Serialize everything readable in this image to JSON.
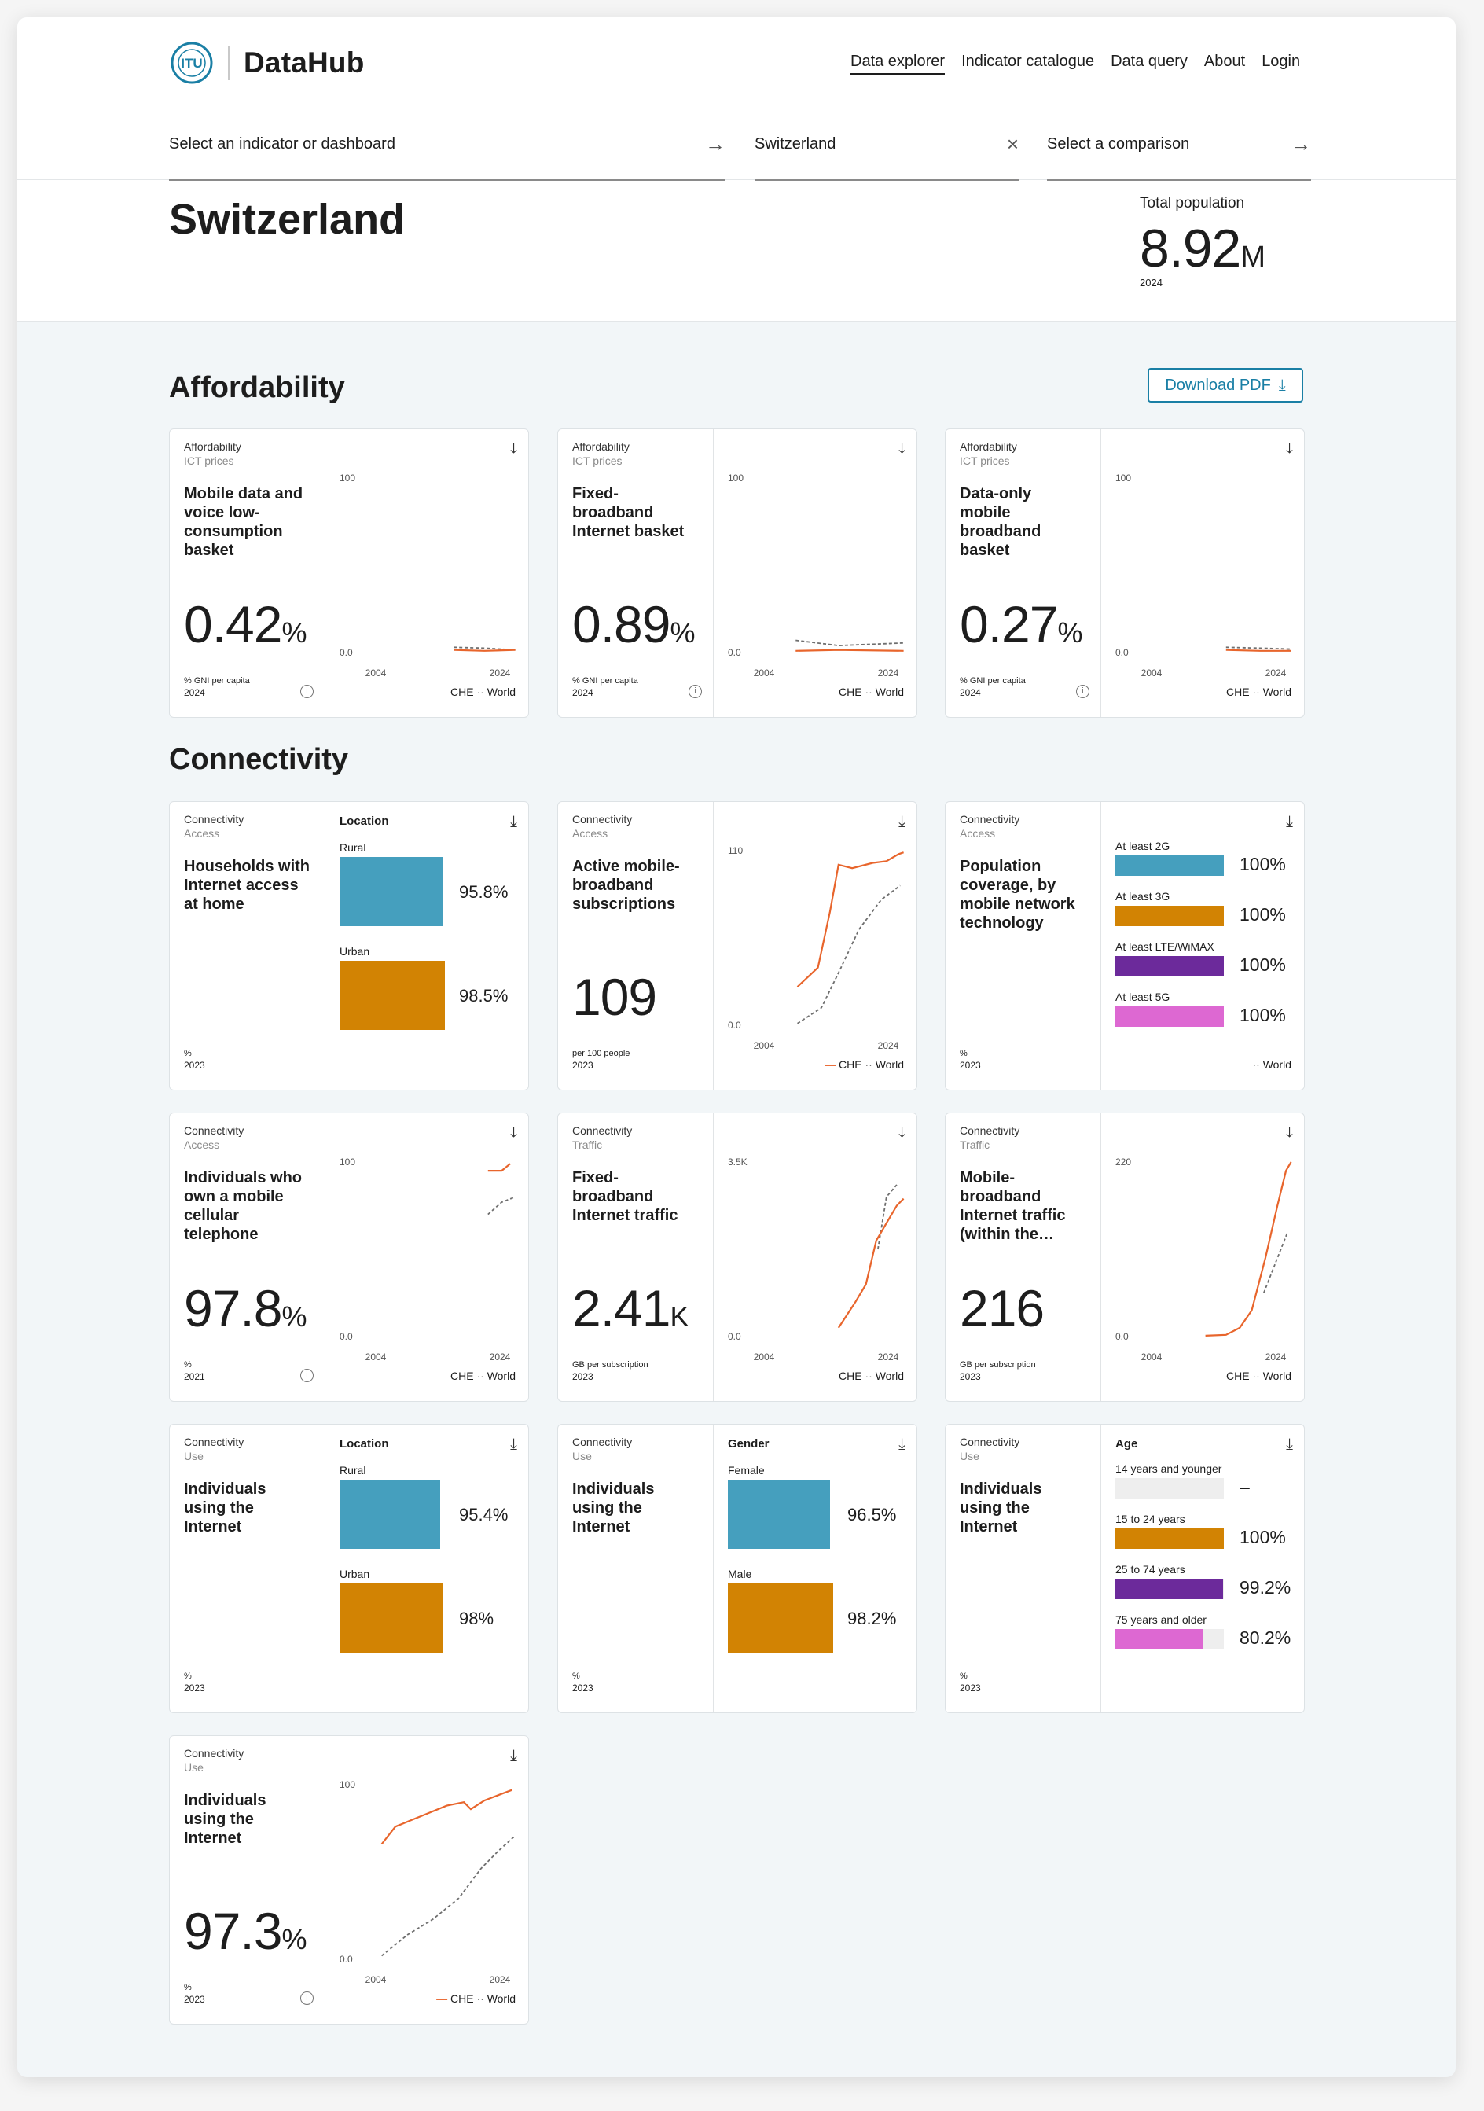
{
  "header": {
    "brand": "DataHub",
    "logo_text": "ITU",
    "nav": [
      "Data explorer",
      "Indicator catalogue",
      "Data query",
      "About",
      "Login"
    ]
  },
  "search": {
    "indicator": "Select an indicator or dashboard",
    "country": "Switzerland",
    "comparison": "Select a comparison"
  },
  "country": {
    "name": "Switzerland",
    "pop_label": "Total population",
    "pop_value": "8.92",
    "pop_unit": "M",
    "pop_year": "2024"
  },
  "sections": {
    "affordability": "Affordability",
    "connectivity": "Connectivity",
    "download": "Download PDF"
  },
  "legend": {
    "che": "CHE",
    "world": "World"
  },
  "colors": {
    "che": "#e8652c",
    "world": "#6f6f6f",
    "blue": "#459fbe",
    "orange": "#d28303",
    "purple": "#6c2a9b",
    "pink": "#dd68d2"
  },
  "cards": [
    {
      "cat": "Affordability",
      "sub": "ICT prices",
      "title": "Mobile data and voice low-consumption basket",
      "value": "0.42",
      "suffix": "%",
      "unit": "% GNI per capita",
      "year": "2024",
      "ymax": "100",
      "ymin": "0.0",
      "x0": "2004",
      "x1": "2024"
    },
    {
      "cat": "Affordability",
      "sub": "ICT prices",
      "title": "Fixed-broadband Internet basket",
      "value": "0.89",
      "suffix": "%",
      "unit": "% GNI per capita",
      "year": "2024",
      "ymax": "100",
      "ymin": "0.0",
      "x0": "2004",
      "x1": "2024"
    },
    {
      "cat": "Affordability",
      "sub": "ICT prices",
      "title": "Data-only mobile broadband basket",
      "value": "0.27",
      "suffix": "%",
      "unit": "% GNI per capita",
      "year": "2024",
      "ymax": "100",
      "ymin": "0.0",
      "x0": "2004",
      "x1": "2024"
    },
    {
      "cat": "Connectivity",
      "sub": "Access",
      "title": "Households with Internet access at home",
      "unit": "%",
      "year": "2023",
      "panel": "Location",
      "bars": [
        {
          "label": "Rural",
          "value": "95.8%"
        },
        {
          "label": "Urban",
          "value": "98.5%"
        }
      ]
    },
    {
      "cat": "Connectivity",
      "sub": "Access",
      "title": "Active mobile-broadband subscriptions",
      "value": "109",
      "suffix": "",
      "unit": "per 100 people",
      "year": "2023",
      "ymax": "110",
      "ymin": "0.0",
      "x0": "2004",
      "x1": "2024"
    },
    {
      "cat": "Connectivity",
      "sub": "Access",
      "title": "Population coverage, by mobile network technology",
      "unit": "%",
      "year": "2023",
      "bars": [
        {
          "label": "At least 2G",
          "value": "100%"
        },
        {
          "label": "At least 3G",
          "value": "100%"
        },
        {
          "label": "At least LTE/WiMAX",
          "value": "100%"
        },
        {
          "label": "At least 5G",
          "value": "100%"
        }
      ]
    },
    {
      "cat": "Connectivity",
      "sub": "Access",
      "title": "Individuals who own a mobile cellular telephone",
      "value": "97.8",
      "suffix": "%",
      "unit": "%",
      "year": "2021",
      "ymax": "100",
      "ymin": "0.0",
      "x0": "2004",
      "x1": "2024"
    },
    {
      "cat": "Connectivity",
      "sub": "Traffic",
      "title": "Fixed-broadband Internet traffic",
      "value": "2.41",
      "suffix": "K",
      "unit": "GB per subscription",
      "year": "2023",
      "ymax": "3.5K",
      "ymin": "0.0",
      "x0": "2004",
      "x1": "2024"
    },
    {
      "cat": "Connectivity",
      "sub": "Traffic",
      "title": "Mobile-broadband Internet traffic (within the…",
      "value": "216",
      "suffix": "",
      "unit": "GB per subscription",
      "year": "2023",
      "ymax": "220",
      "ymin": "0.0",
      "x0": "2004",
      "x1": "2024"
    },
    {
      "cat": "Connectivity",
      "sub": "Use",
      "title": "Individuals using the Internet",
      "unit": "%",
      "year": "2023",
      "panel": "Location",
      "bars": [
        {
          "label": "Rural",
          "value": "95.4%"
        },
        {
          "label": "Urban",
          "value": "98%"
        }
      ]
    },
    {
      "cat": "Connectivity",
      "sub": "Use",
      "title": "Individuals using the Internet",
      "unit": "%",
      "year": "2023",
      "panel": "Gender",
      "bars": [
        {
          "label": "Female",
          "value": "96.5%"
        },
        {
          "label": "Male",
          "value": "98.2%"
        }
      ]
    },
    {
      "cat": "Connectivity",
      "sub": "Use",
      "title": "Individuals using the Internet",
      "unit": "%",
      "year": "2023",
      "panel": "Age",
      "bars": [
        {
          "label": "14 years and younger",
          "value": "–"
        },
        {
          "label": "15 to 24 years",
          "value": "100%"
        },
        {
          "label": "25 to 74 years",
          "value": "99.2%"
        },
        {
          "label": "75 years and older",
          "value": "80.2%"
        }
      ]
    },
    {
      "cat": "Connectivity",
      "sub": "Use",
      "title": "Individuals using the Internet",
      "value": "97.3",
      "suffix": "%",
      "unit": "%",
      "year": "2023",
      "ymax": "100",
      "ymin": "0.0",
      "x0": "2004",
      "x1": "2024"
    }
  ]
}
